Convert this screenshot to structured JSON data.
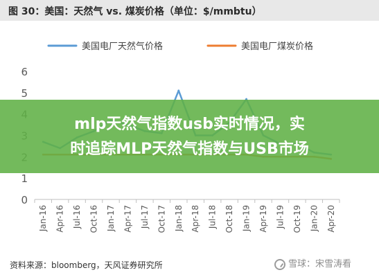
{
  "header": {
    "title": "图 30：美国：天然气 vs. 煤炭价格（单位：$/mmbtu）"
  },
  "banner": {
    "line1": "mlp天然气指数usb实时情况，实",
    "line2": "时追踪MLP天然气指数与USB市场"
  },
  "source": {
    "text": "资料来源：bloomberg，天风证券研究所"
  },
  "watermark": {
    "text": "雪球：宋雪涛看"
  },
  "colors": {
    "gas": "#5b9bd5",
    "coal": "#ed7d31",
    "banner": "#60b046"
  },
  "chart_data": {
    "type": "line",
    "x": [
      "Jan-16",
      "Apr-16",
      "Jul-16",
      "Oct-16",
      "Jan-17",
      "Apr-17",
      "Jul-17",
      "Oct-17",
      "Jan-18",
      "Apr-18",
      "Jul-18",
      "Oct-18",
      "Jan-19",
      "Apr-19",
      "Jul-19",
      "Oct-19",
      "Jan-20",
      "Apr-20"
    ],
    "ylim": [
      0,
      6
    ],
    "yticks": [
      0,
      1,
      2,
      3,
      4,
      5,
      6
    ],
    "grid": false,
    "legend_position": "top",
    "series": [
      {
        "name": "美国电厂天然气价格",
        "color": "#5b9bd5",
        "values": [
          2.7,
          2.4,
          2.9,
          3.2,
          3.7,
          3.5,
          3.2,
          3.1,
          5.1,
          3.0,
          3.0,
          3.6,
          4.7,
          3.0,
          2.6,
          2.6,
          2.2,
          2.1
        ]
      },
      {
        "name": "美国电厂煤炭价格",
        "color": "#ed7d31",
        "values": [
          2.1,
          2.1,
          2.1,
          2.1,
          2.1,
          2.1,
          2.1,
          2.1,
          2.1,
          2.1,
          2.1,
          2.1,
          2.1,
          2.0,
          2.0,
          2.0,
          2.0,
          1.9
        ]
      }
    ]
  }
}
